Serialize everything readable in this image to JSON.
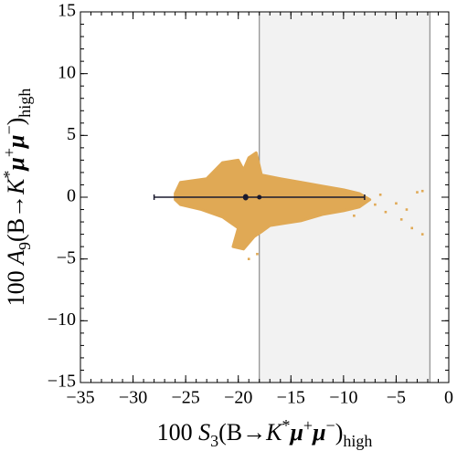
{
  "chart_data": {
    "type": "scatter",
    "xlabel": [
      "100 ",
      "S",
      "3",
      "(B→",
      "K",
      "*",
      "μ",
      "+",
      "μ",
      "−",
      ")",
      "high"
    ],
    "ylabel": [
      "100 ",
      "A",
      "9",
      "(B→",
      "K",
      "*",
      "μ",
      "+",
      "μ",
      "−",
      ")",
      "high"
    ],
    "xlim": [
      -35,
      0
    ],
    "ylim": [
      -15,
      15
    ],
    "xticks": [
      {
        "value": -35,
        "label": "−35"
      },
      {
        "value": -30,
        "label": "−30"
      },
      {
        "value": -25,
        "label": "−25"
      },
      {
        "value": -20,
        "label": "−20"
      },
      {
        "value": -15,
        "label": "−15"
      },
      {
        "value": -10,
        "label": "−10"
      },
      {
        "value": -5,
        "label": "−5"
      },
      0
    ],
    "yticks": [
      {
        "value": -15,
        "label": "−15"
      },
      {
        "value": -10,
        "label": "−10"
      },
      {
        "value": -5,
        "label": "−5"
      },
      0,
      5,
      10,
      15
    ],
    "minor_step": 1,
    "band": {
      "x": [
        -18,
        -1.8
      ],
      "color": "#f2f2f2"
    },
    "cloud": {
      "color": "#e0a955",
      "x": [
        -26,
        -25.5,
        -23,
        -21.5,
        -20,
        -19.5,
        -19,
        -18.3,
        -17.8,
        -16,
        -14,
        -12,
        -10,
        -8.5,
        -7.5,
        -8.5,
        -10,
        -12,
        -14,
        -15.5,
        -17,
        -17.8,
        -18.5,
        -19.5,
        -20.5,
        -20,
        -21.5,
        -23.5,
        -25.5,
        -26
      ],
      "y": [
        0.3,
        1.2,
        1.5,
        2.8,
        3,
        2.2,
        3.2,
        3.6,
        1.8,
        1.5,
        1.2,
        0.9,
        0.6,
        0.3,
        -0.2,
        -0.8,
        -1.1,
        -1.4,
        -1.9,
        -2.1,
        -2.3,
        -2.8,
        -3.2,
        -4.2,
        -4,
        -2.5,
        -1.6,
        -1,
        -0.6,
        -0.2
      ]
    },
    "strays": {
      "x": [
        -7,
        -6,
        -5,
        -4.5,
        -3.5,
        -2.5,
        -3,
        -2.5,
        -6.5,
        -19,
        -18.2,
        -9,
        -4
      ],
      "y": [
        -0.6,
        -1.2,
        -0.5,
        -1.8,
        -2.5,
        -3,
        0.4,
        0.5,
        0.2,
        -5,
        -4.6,
        -1.5,
        -1
      ]
    },
    "estimate": {
      "x": -18,
      "y": 0,
      "xerr": 10,
      "color": "#1a1a2e"
    },
    "extra_point": {
      "x": -19.3,
      "y": 0
    }
  }
}
